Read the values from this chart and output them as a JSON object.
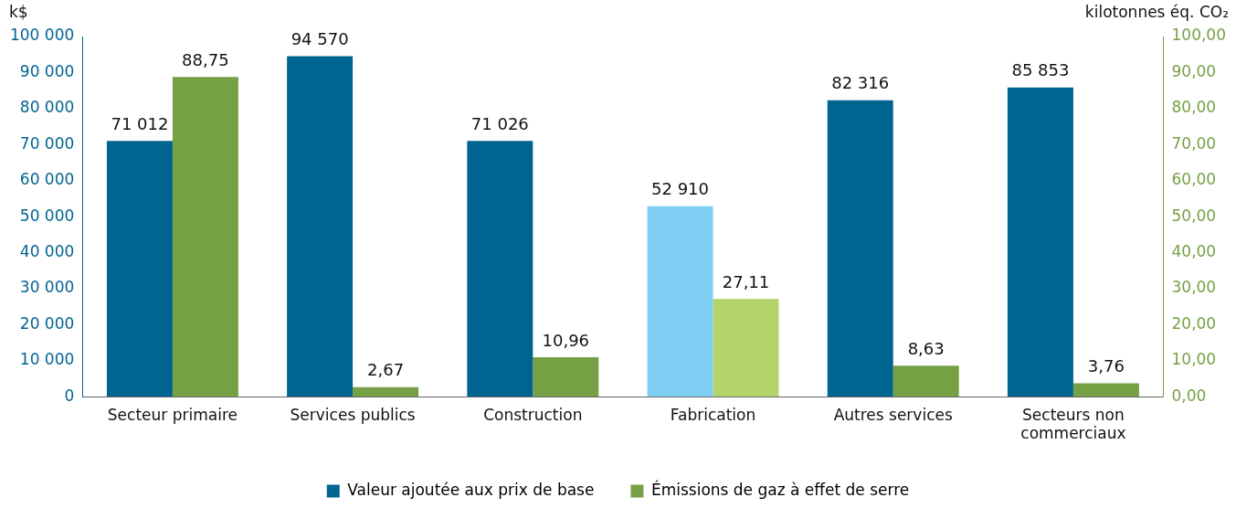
{
  "chart_data": {
    "type": "bar",
    "ylabel": "k$",
    "y2label": "kilotonnes éq. CO₂",
    "categories": [
      "Secteur primaire",
      "Services publics",
      "Construction",
      "Fabrication",
      "Autres services",
      "Secteurs non commerciaux"
    ],
    "series": [
      {
        "name": "Valeur ajoutée aux prix de base",
        "color": "#006491",
        "colors": [
          "#006491",
          "#006491",
          "#006491",
          "#7fcef3",
          "#006491",
          "#006491"
        ],
        "values": [
          71012,
          94570,
          71026,
          52910,
          82316,
          85853
        ],
        "value_labels": [
          "71 012",
          "94 570",
          "71 026",
          "52 910",
          "82 316",
          "85 853"
        ]
      },
      {
        "name": "Émissions de gaz à effet de serre",
        "color": "#76a044",
        "axis": "y2",
        "colors": [
          "#76a044",
          "#76a044",
          "#76a044",
          "#b3d36b",
          "#76a044",
          "#76a044"
        ],
        "values": [
          88.75,
          2.67,
          10.96,
          27.11,
          8.63,
          3.76
        ],
        "value_labels": [
          "88,75",
          "2,67",
          "10,96",
          "27,11",
          "8,63",
          "3,76"
        ]
      }
    ],
    "ylim": [
      0,
      100000
    ],
    "yticks": [
      {
        "value": 0,
        "label": "0"
      },
      {
        "value": 10000,
        "label": "10 000"
      },
      {
        "value": 20000,
        "label": "20 000"
      },
      {
        "value": 30000,
        "label": "30 000"
      },
      {
        "value": 40000,
        "label": "40 000"
      },
      {
        "value": 50000,
        "label": "50 000"
      },
      {
        "value": 60000,
        "label": "60 000"
      },
      {
        "value": 70000,
        "label": "70 000"
      },
      {
        "value": 80000,
        "label": "80 000"
      },
      {
        "value": 90000,
        "label": "90 000"
      },
      {
        "value": 100000,
        "label": "100 000"
      }
    ],
    "y2lim": [
      0,
      100
    ],
    "y2ticks": [
      {
        "value": 0,
        "label": "0,00"
      },
      {
        "value": 10,
        "label": "10,00"
      },
      {
        "value": 20,
        "label": "20,00"
      },
      {
        "value": 30,
        "label": "30,00"
      },
      {
        "value": 40,
        "label": "40,00"
      },
      {
        "value": 50,
        "label": "50,00"
      },
      {
        "value": 60,
        "label": "60,00"
      },
      {
        "value": 70,
        "label": "70,00"
      },
      {
        "value": 80,
        "label": "80,00"
      },
      {
        "value": 90,
        "label": "90,00"
      },
      {
        "value": 100,
        "label": "100,00"
      }
    ],
    "grid": false,
    "legend": "bottom"
  }
}
